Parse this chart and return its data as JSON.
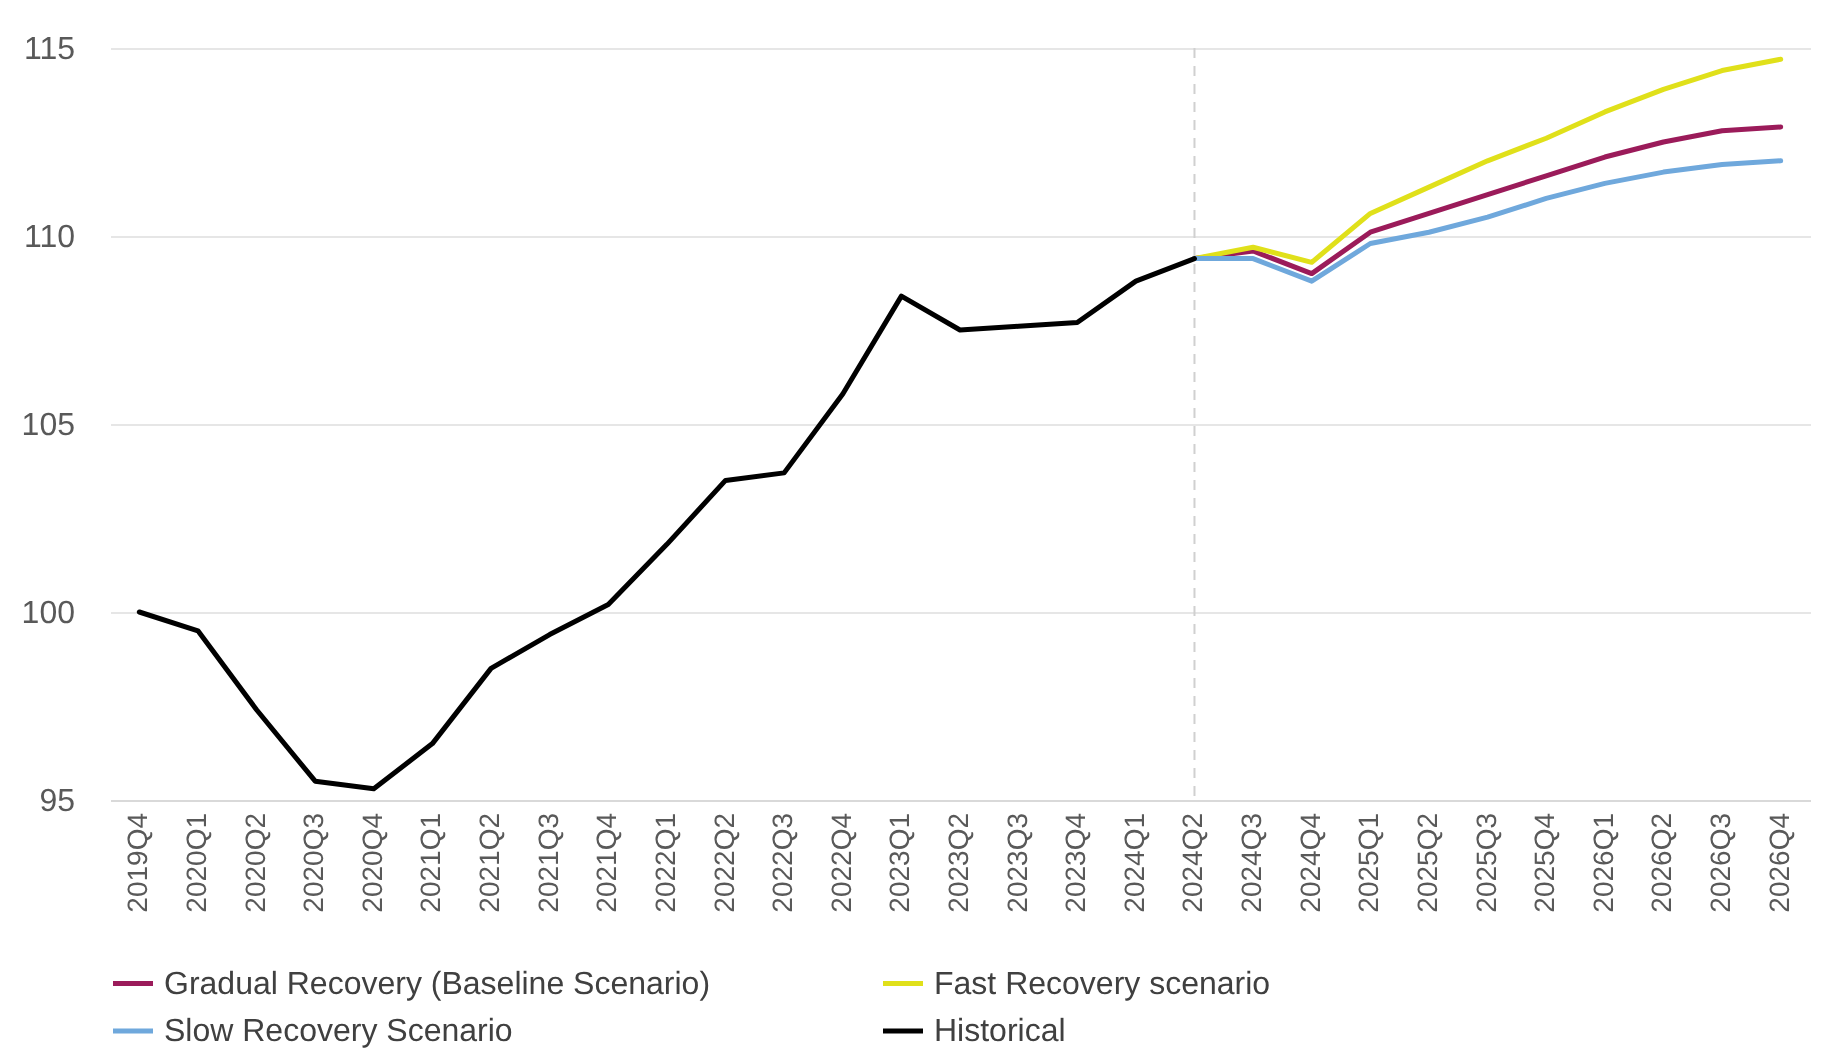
{
  "chart_data": {
    "type": "line",
    "categories": [
      "2019Q4",
      "2020Q1",
      "2020Q2",
      "2020Q3",
      "2020Q4",
      "2021Q1",
      "2021Q2",
      "2021Q3",
      "2021Q4",
      "2022Q1",
      "2022Q2",
      "2022Q3",
      "2022Q4",
      "2023Q1",
      "2023Q2",
      "2023Q3",
      "2023Q4",
      "2024Q1",
      "2024Q2",
      "2024Q3",
      "2024Q4",
      "2025Q1",
      "2025Q2",
      "2025Q3",
      "2025Q4",
      "2026Q1",
      "2026Q2",
      "2026Q3",
      "2026Q4"
    ],
    "series": [
      {
        "name": "Gradual Recovery (Baseline Scenario)",
        "color": "#9b1b5a",
        "values": [
          null,
          null,
          null,
          null,
          null,
          null,
          null,
          null,
          null,
          null,
          null,
          null,
          null,
          null,
          null,
          null,
          null,
          null,
          109.4,
          109.6,
          109.0,
          110.1,
          110.6,
          111.1,
          111.6,
          112.1,
          112.5,
          112.8,
          112.9
        ]
      },
      {
        "name": "Fast Recovery scenario",
        "color": "#e0e01a",
        "values": [
          null,
          null,
          null,
          null,
          null,
          null,
          null,
          null,
          null,
          null,
          null,
          null,
          null,
          null,
          null,
          null,
          null,
          null,
          109.4,
          109.7,
          109.3,
          110.6,
          111.3,
          112.0,
          112.6,
          113.3,
          113.9,
          114.4,
          114.7
        ]
      },
      {
        "name": "Slow Recovery Scenario",
        "color": "#6fa8dc",
        "values": [
          null,
          null,
          null,
          null,
          null,
          null,
          null,
          null,
          null,
          null,
          null,
          null,
          null,
          null,
          null,
          null,
          null,
          null,
          109.4,
          109.4,
          108.8,
          109.8,
          110.1,
          110.5,
          111.0,
          111.4,
          111.7,
          111.9,
          112.0
        ]
      },
      {
        "name": "Historical",
        "color": "#000000",
        "values": [
          100,
          99.5,
          97.4,
          95.5,
          95.3,
          96.5,
          98.5,
          99.4,
          100.2,
          101.8,
          103.5,
          103.7,
          105.8,
          108.4,
          107.5,
          107.6,
          107.7,
          108.8,
          109.4,
          null,
          null,
          null,
          null,
          null,
          null,
          null,
          null,
          null,
          null
        ]
      }
    ],
    "ylim": [
      95,
      115
    ],
    "yticks": [
      95,
      100,
      105,
      110,
      115
    ],
    "grid": "y",
    "legend": "bottom",
    "ref_lines": [
      {
        "axis": "x",
        "value": "2024Q2",
        "color": "#d0d0d0",
        "line_style": "dashed"
      }
    ]
  }
}
